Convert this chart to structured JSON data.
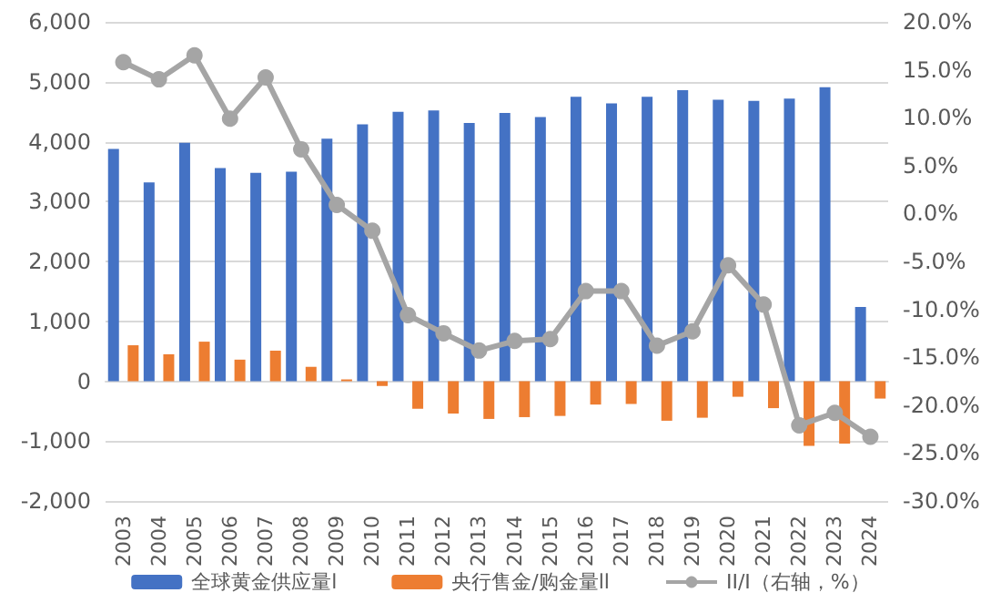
{
  "chart_data": {
    "type": "bar",
    "categories": [
      "2003",
      "2004",
      "2005",
      "2006",
      "2007",
      "2008",
      "2009",
      "2010",
      "2011",
      "2012",
      "2013",
      "2014",
      "2015",
      "2016",
      "2017",
      "2018",
      "2019",
      "2020",
      "2021",
      "2022",
      "2023",
      "2024"
    ],
    "series": [
      {
        "name": "全球黄金供应量l",
        "color": "#4472c4",
        "values": [
          3880,
          3320,
          3980,
          3560,
          3480,
          3500,
          4050,
          4290,
          4500,
          4520,
          4310,
          4480,
          4410,
          4750,
          4640,
          4750,
          4860,
          4700,
          4680,
          4720,
          4910,
          1240
        ]
      },
      {
        "name": "央行售金/购金量ll",
        "color": "#ed7d31",
        "values": [
          600,
          450,
          660,
          360,
          510,
          240,
          30,
          -80,
          -460,
          -540,
          -630,
          -600,
          -580,
          -390,
          -380,
          -660,
          -610,
          -260,
          -450,
          -1080,
          -1040,
          -290
        ]
      },
      {
        "name": "II/I（右轴，%）",
        "type": "line",
        "axis": "y2",
        "color": "#a5a5a5",
        "marker": "circle",
        "values": [
          15.8,
          14.0,
          16.5,
          9.9,
          14.2,
          6.7,
          0.9,
          -1.8,
          -10.6,
          -12.5,
          -14.3,
          -13.3,
          -13.1,
          -8.1,
          -8.1,
          -13.8,
          -12.3,
          -5.4,
          -9.5,
          -22.1,
          -20.8,
          -23.3
        ]
      }
    ],
    "ylim": [
      -2000,
      6000
    ],
    "yticks": [
      {
        "value": -2000,
        "label": "-2,000"
      },
      {
        "value": -1000,
        "label": "-1,000"
      },
      0,
      {
        "value": 1000,
        "label": "1,000"
      },
      {
        "value": 2000,
        "label": "2,000"
      },
      {
        "value": 3000,
        "label": "3,000"
      },
      {
        "value": 4000,
        "label": "4,000"
      },
      {
        "value": 5000,
        "label": "5,000"
      },
      {
        "value": 6000,
        "label": "6,000"
      }
    ],
    "y2lim": [
      -30,
      20
    ],
    "y2ticks": [
      {
        "value": -30,
        "label": "-30.0%"
      },
      {
        "value": -25,
        "label": "-25.0%"
      },
      {
        "value": -20,
        "label": "-20.0%"
      },
      {
        "value": -15,
        "label": "-15.0%"
      },
      {
        "value": -10,
        "label": "-10.0%"
      },
      {
        "value": -5,
        "label": "-5.0%"
      },
      {
        "value": 0,
        "label": "0.0%"
      },
      {
        "value": 5,
        "label": "5.0%"
      },
      {
        "value": 10,
        "label": "10.0%"
      },
      {
        "value": 15,
        "label": "15.0%"
      },
      {
        "value": 20,
        "label": "20.0%"
      }
    ],
    "grid": "y",
    "legend": "bottom"
  }
}
